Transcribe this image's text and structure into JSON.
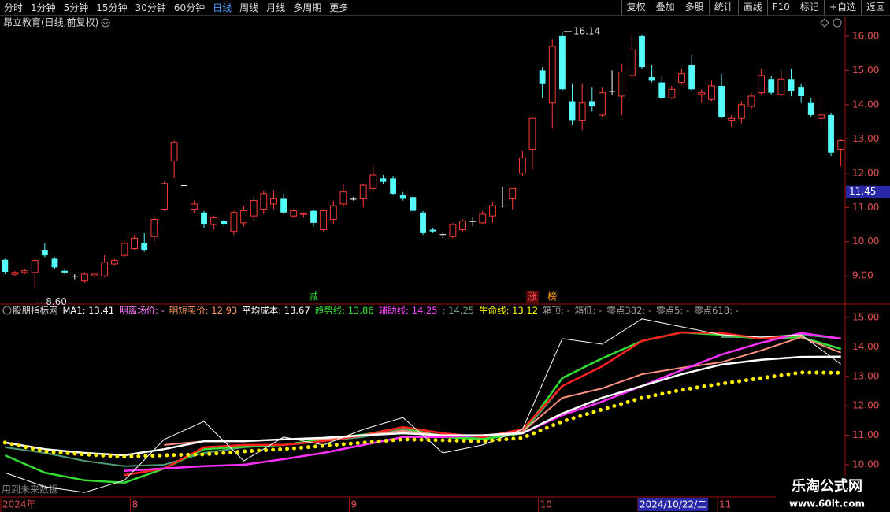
{
  "toolbar": {
    "periods": [
      "分时",
      "1分钟",
      "5分钟",
      "15分钟",
      "30分钟",
      "60分钟",
      "日线",
      "周线",
      "月线",
      "多周期",
      "更多"
    ],
    "active": 6,
    "buttons": [
      "复权",
      "叠加",
      "多股",
      "统计",
      "画线",
      "F10",
      "标记",
      "+自选",
      "返回"
    ]
  },
  "chart_data": [
    {
      "type": "candlestick",
      "title": "昂立教育(日线,前复权)",
      "categories": [
        "2024年",
        null,
        null,
        null,
        null,
        null,
        null,
        null,
        null,
        null,
        null,
        null,
        null,
        "8",
        null,
        null,
        null,
        null,
        null,
        null,
        null,
        null,
        null,
        null,
        null,
        null,
        null,
        null,
        null,
        null,
        null,
        null,
        null,
        null,
        null,
        "9",
        null,
        null,
        null,
        null,
        null,
        null,
        null,
        null,
        null,
        null,
        null,
        null,
        null,
        null,
        null,
        null,
        null,
        null,
        "10",
        null,
        null,
        null,
        null,
        null,
        null,
        null,
        null,
        null,
        "2024/10/22/二",
        null,
        null,
        null,
        null,
        null,
        null,
        null,
        "11",
        null,
        null,
        null,
        null,
        null,
        null,
        null,
        null,
        null,
        null,
        null,
        null
      ],
      "cursor_index": 64,
      "open": [
        9.47,
        9.05,
        9.1,
        9.1,
        9.75,
        9.5,
        9.15,
        9.0,
        8.85,
        9.0,
        9.0,
        9.35,
        9.6,
        9.8,
        9.95,
        10.15,
        10.95,
        12.35,
        11.65,
        10.95,
        10.85,
        10.5,
        10.6,
        10.3,
        10.55,
        10.75,
        10.95,
        11.1,
        11.25,
        10.75,
        10.8,
        10.9,
        10.35,
        10.65,
        11.1,
        11.25,
        11.25,
        11.55,
        11.85,
        11.85,
        11.35,
        11.3,
        10.85,
        10.35,
        10.22,
        10.15,
        10.35,
        10.6,
        10.55,
        10.75,
        11.05,
        11.25,
        12.0,
        12.7,
        15.0,
        14.05,
        16.0,
        14.1,
        13.55,
        14.1,
        13.7,
        14.4,
        14.25,
        14.85,
        16.0,
        14.8,
        14.65,
        14.2,
        14.65,
        15.15,
        14.3,
        14.15,
        14.55,
        13.55,
        13.6,
        13.95,
        14.35,
        14.75,
        14.3,
        14.75,
        14.5,
        14.05,
        13.6,
        13.7,
        12.7
      ],
      "high": [
        9.5,
        9.15,
        9.2,
        9.5,
        9.95,
        9.55,
        9.2,
        9.05,
        9.1,
        9.1,
        9.6,
        9.5,
        10.0,
        10.2,
        10.25,
        10.7,
        11.75,
        12.95,
        11.65,
        11.2,
        10.9,
        10.75,
        10.65,
        10.9,
        11.05,
        11.3,
        11.5,
        11.5,
        11.4,
        10.95,
        10.85,
        10.95,
        10.95,
        11.2,
        11.7,
        11.3,
        11.7,
        12.2,
        11.95,
        11.9,
        11.45,
        11.35,
        10.9,
        10.4,
        10.3,
        10.55,
        10.65,
        10.7,
        10.9,
        11.15,
        11.6,
        11.55,
        12.65,
        13.6,
        15.1,
        15.9,
        16.14,
        14.6,
        14.6,
        14.5,
        14.5,
        15.0,
        15.2,
        16.05,
        16.05,
        15.15,
        14.85,
        14.55,
        15.05,
        15.45,
        14.45,
        14.7,
        14.9,
        13.7,
        14.1,
        14.35,
        15.05,
        14.85,
        15.0,
        15.05,
        14.6,
        14.2,
        14.2,
        13.75,
        13.0
      ],
      "low": [
        9.05,
        9.0,
        9.05,
        8.6,
        9.55,
        9.2,
        9.05,
        8.9,
        8.8,
        8.95,
        8.95,
        9.3,
        9.55,
        9.75,
        9.7,
        10.0,
        10.9,
        11.85,
        11.65,
        10.85,
        10.4,
        10.35,
        10.45,
        10.2,
        10.45,
        10.6,
        10.8,
        10.95,
        10.8,
        10.7,
        10.7,
        10.45,
        10.3,
        10.5,
        11.0,
        11.2,
        11.0,
        11.45,
        11.7,
        11.35,
        11.2,
        10.85,
        10.2,
        10.25,
        10.1,
        10.1,
        10.3,
        10.45,
        10.5,
        10.55,
        11.0,
        10.95,
        11.9,
        12.1,
        14.2,
        13.3,
        14.4,
        13.4,
        13.25,
        13.8,
        13.65,
        14.3,
        13.7,
        14.8,
        15.05,
        14.65,
        14.15,
        14.15,
        14.6,
        14.4,
        14.05,
        14.1,
        13.6,
        13.35,
        13.45,
        13.85,
        14.3,
        14.3,
        14.25,
        14.25,
        14.05,
        13.65,
        13.3,
        12.5,
        12.2
      ],
      "close": [
        9.12,
        9.1,
        9.15,
        9.45,
        9.6,
        9.25,
        9.1,
        9.0,
        9.05,
        9.05,
        9.4,
        9.45,
        9.95,
        10.1,
        9.75,
        10.65,
        11.7,
        12.9,
        11.65,
        11.1,
        10.5,
        10.7,
        10.5,
        10.85,
        10.9,
        11.2,
        11.4,
        11.25,
        10.85,
        10.9,
        10.82,
        10.55,
        10.9,
        11.05,
        11.45,
        11.25,
        11.65,
        11.95,
        11.75,
        11.4,
        11.25,
        10.9,
        10.25,
        10.3,
        10.22,
        10.5,
        10.6,
        10.6,
        10.8,
        11.05,
        11.05,
        11.55,
        12.45,
        13.6,
        14.6,
        15.7,
        14.45,
        13.55,
        14.05,
        13.95,
        14.35,
        14.4,
        14.95,
        15.6,
        15.1,
        14.7,
        14.2,
        14.45,
        14.9,
        14.45,
        14.35,
        14.55,
        13.65,
        13.6,
        14.0,
        14.25,
        14.85,
        14.35,
        14.75,
        14.4,
        14.25,
        13.7,
        13.7,
        12.6,
        12.95
      ],
      "up_color": "#ff3c3c",
      "down_color": "#54fcfc",
      "flat_color": "#ffffff",
      "ylim": [
        8.2,
        16.55
      ],
      "yticks": [
        {
          "value": 9,
          "label": "9.00"
        },
        {
          "value": 10,
          "label": "10.00"
        },
        {
          "value": 11,
          "label": "11.00"
        },
        {
          "value": 12,
          "label": "12.00"
        },
        {
          "value": 13,
          "label": "13.00"
        },
        {
          "value": 14,
          "label": "14.00"
        },
        {
          "value": 15,
          "label": "15.00"
        },
        {
          "value": 16,
          "label": "16.00"
        }
      ],
      "cursor_price": 11.45,
      "annotations": [
        {
          "index": 56,
          "value": 16.14
        },
        {
          "index": 3,
          "value": 8.6,
          "label": "8.60"
        }
      ],
      "signals": [
        {
          "index": 31,
          "text": "减",
          "color": "#33dd33"
        },
        {
          "index": 53,
          "text": "涨",
          "color": "#ff5050",
          "background": "#5a0a0a"
        },
        {
          "index": 55,
          "text": "榜",
          "color": "#ffa020"
        }
      ]
    },
    {
      "type": "line",
      "title": "股朋指标网",
      "x": [
        0,
        4,
        8,
        12,
        16,
        20,
        24,
        28,
        32,
        36,
        40,
        44,
        48,
        52,
        56,
        60,
        64,
        68,
        72,
        76,
        80,
        84
      ],
      "legend": [
        {
          "name": "MA1",
          "value": 13.41,
          "color": "#ffffff"
        },
        {
          "name": "明离场价",
          "value": "-",
          "color": "#ff80ff"
        },
        {
          "name": "明短买价",
          "value": 12.93,
          "color": "#ff9966"
        },
        {
          "name": "平均成本",
          "value": 13.67,
          "color": "#ffffff"
        },
        {
          "name": "趋势线",
          "value": 13.86,
          "color": "#33dd33"
        },
        {
          "name": "辅助线",
          "value": 14.25,
          "color": "#ff44ff"
        },
        {
          "name": null,
          "value": 14.25,
          "color": "#70a080"
        },
        {
          "name": "生命线",
          "value": 13.12,
          "color": "#ffff00"
        },
        {
          "name": "箱顶",
          "value": "-",
          "color": "#a0a0a0"
        },
        {
          "name": "箱低",
          "value": "-",
          "color": "#a0a0a0"
        },
        {
          "name": "零点382",
          "value": "-",
          "color": "#a0a0a0"
        },
        {
          "name": "零点5",
          "value": "-",
          "color": "#a0a0a0"
        },
        {
          "name": "零点618",
          "value": "-",
          "color": "#a0a0a0"
        }
      ],
      "series": [
        {
          "color": "#4f9a70",
          "width": 2,
          "values": [
            10.59,
            10.4,
            10.13,
            9.95,
            10.0,
            10.4,
            10.59,
            10.67,
            10.8,
            10.94,
            11.2,
            11.0,
            10.91,
            11.07,
            12.67,
            null,
            null,
            null,
            14.33,
            14.33,
            14.41,
            14.28
          ]
        },
        {
          "color": "#33dd33",
          "width": 2.5,
          "values": [
            10.32,
            9.73,
            9.47,
            9.39,
            9.87,
            10.53,
            10.61,
            10.67,
            10.86,
            11.02,
            11.26,
            10.94,
            10.86,
            11.07,
            12.94,
            13.61,
            14.2,
            14.49,
            14.41,
            14.28,
            14.33,
            13.93
          ]
        },
        {
          "color": "#ff2020",
          "width": 2.5,
          "values": [
            null,
            null,
            null,
            9.65,
            9.87,
            10.59,
            10.67,
            10.67,
            10.8,
            11.0,
            11.28,
            11.07,
            10.94,
            11.2,
            12.67,
            13.34,
            14.2,
            14.49,
            14.47,
            14.28,
            14.41,
            null
          ]
        },
        {
          "color": "#ff9080",
          "width": 2,
          "values": [
            null,
            null,
            null,
            null,
            10.67,
            10.8,
            10.8,
            10.86,
            10.86,
            11.0,
            11.15,
            11.0,
            11.0,
            11.12,
            12.27,
            12.59,
            13.07,
            13.29,
            13.48,
            13.88,
            14.33,
            13.8
          ]
        },
        {
          "color": "#ff30ff",
          "width": 2.5,
          "values": [
            null,
            null,
            null,
            9.79,
            9.87,
            9.95,
            10.0,
            10.19,
            10.4,
            10.67,
            10.94,
            10.94,
            11.0,
            11.07,
            11.68,
            12.14,
            12.67,
            13.21,
            13.74,
            14.14,
            14.47,
            14.28
          ]
        },
        {
          "color": "#ffffff",
          "width": 2.5,
          "values": [
            10.75,
            10.53,
            10.4,
            10.32,
            10.53,
            10.8,
            10.8,
            10.86,
            10.91,
            11.0,
            11.07,
            11.0,
            11.0,
            11.07,
            11.74,
            12.27,
            12.67,
            13.07,
            13.4,
            13.56,
            13.66,
            13.67
          ]
        },
        {
          "color": "#ffffff",
          "width": 1,
          "values": [
            9.73,
            9.25,
            9.06,
            9.47,
            10.86,
            11.47,
            10.13,
            10.94,
            10.67,
            11.2,
            11.6,
            10.4,
            10.67,
            11.2,
            14.28,
            14.09,
            14.95,
            14.68,
            14.41,
            14.33,
            14.41,
            13.41
          ]
        },
        {
          "color": "#ffee00",
          "width": 5,
          "dash": "dotted",
          "values": [
            10.75,
            10.45,
            10.35,
            10.27,
            10.32,
            10.35,
            10.45,
            10.53,
            10.64,
            10.75,
            10.86,
            10.83,
            10.8,
            10.91,
            11.47,
            11.87,
            12.27,
            12.54,
            12.75,
            12.94,
            13.13,
            13.12
          ]
        }
      ],
      "ylim": [
        8.93,
        15.4
      ],
      "yticks": [
        {
          "value": 10,
          "label": "10.00"
        },
        {
          "value": 11,
          "label": "11.00"
        },
        {
          "value": 12,
          "label": "12.00"
        },
        {
          "value": 13,
          "label": "13.00"
        },
        {
          "value": 14,
          "label": "14.00"
        },
        {
          "value": 15,
          "label": "15.00"
        }
      ]
    }
  ],
  "footnote": "用到未来数据",
  "watermark": {
    "title": "乐淘公式网",
    "url": "www.60lt.com"
  }
}
